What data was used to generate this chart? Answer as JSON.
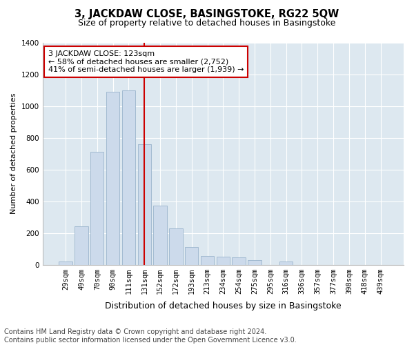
{
  "title1": "3, JACKDAW CLOSE, BASINGSTOKE, RG22 5QW",
  "title2": "Size of property relative to detached houses in Basingstoke",
  "xlabel": "Distribution of detached houses by size in Basingstoke",
  "ylabel": "Number of detached properties",
  "categories": [
    "29sqm",
    "49sqm",
    "70sqm",
    "90sqm",
    "111sqm",
    "131sqm",
    "152sqm",
    "172sqm",
    "193sqm",
    "213sqm",
    "234sqm",
    "254sqm",
    "275sqm",
    "295sqm",
    "316sqm",
    "336sqm",
    "357sqm",
    "377sqm",
    "398sqm",
    "418sqm",
    "439sqm"
  ],
  "values": [
    20,
    240,
    710,
    1090,
    1100,
    760,
    370,
    230,
    110,
    55,
    50,
    45,
    30,
    0,
    20,
    0,
    0,
    0,
    0,
    0,
    0
  ],
  "bar_color": "#ccdaeb",
  "bar_edge_color": "#9ab4cc",
  "vline_x_index": 5,
  "vline_color": "#cc0000",
  "annotation_text": "3 JACKDAW CLOSE: 123sqm\n← 58% of detached houses are smaller (2,752)\n41% of semi-detached houses are larger (1,939) →",
  "annotation_box_color": "#ffffff",
  "annotation_box_edge": "#cc0000",
  "ylim": [
    0,
    1400
  ],
  "yticks": [
    0,
    200,
    400,
    600,
    800,
    1000,
    1200,
    1400
  ],
  "fig_bg_color": "#ffffff",
  "plot_bg_color": "#dde8f0",
  "grid_color": "#ffffff",
  "footnote": "Contains HM Land Registry data © Crown copyright and database right 2024.\nContains public sector information licensed under the Open Government Licence v3.0.",
  "title1_fontsize": 10.5,
  "title2_fontsize": 9,
  "xlabel_fontsize": 9,
  "ylabel_fontsize": 8,
  "tick_fontsize": 7.5,
  "footnote_fontsize": 7,
  "annot_fontsize": 8
}
